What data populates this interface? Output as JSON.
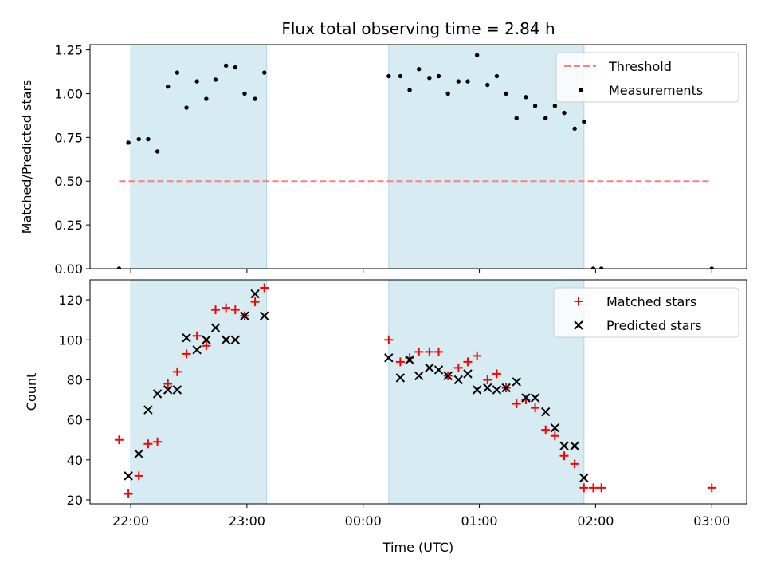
{
  "chart_data": {
    "title": "Flux total observing time = 2.84 h",
    "xlabel": "Time (UTC)",
    "x_ticks": [
      "22:00",
      "23:00",
      "00:00",
      "01:00",
      "02:00",
      "03:00"
    ],
    "x_tick_hours": [
      22,
      23,
      24,
      25,
      26,
      27
    ],
    "xlim_hours": [
      21.65,
      27.3
    ],
    "shaded_intervals_hours": [
      [
        22.0,
        23.17
      ],
      [
        24.22,
        25.9
      ]
    ],
    "shade_color": "#add8e6",
    "panels": [
      {
        "type": "scatter",
        "ylabel": "Matched/Predicted stars",
        "ylim": [
          0,
          1.28
        ],
        "y_ticks": [
          "0.00",
          "0.25",
          "0.50",
          "0.75",
          "1.00",
          "1.25"
        ],
        "y_tick_values": [
          0,
          0.25,
          0.5,
          0.75,
          1.0,
          1.25
        ],
        "legend_position": "top-right",
        "series": [
          {
            "name": "Threshold",
            "kind": "dashed-line",
            "color": "#ff7f7f",
            "x": [
              21.9,
              27.0
            ],
            "y": [
              0.5,
              0.5
            ]
          },
          {
            "name": "Measurements",
            "kind": "dot",
            "color": "#000000",
            "x": [
              21.9,
              21.98,
              22.07,
              22.15,
              22.23,
              22.32,
              22.4,
              22.48,
              22.57,
              22.65,
              22.73,
              22.82,
              22.9,
              22.98,
              23.07,
              23.15,
              24.22,
              24.32,
              24.4,
              24.48,
              24.57,
              24.65,
              24.73,
              24.82,
              24.9,
              24.98,
              25.07,
              25.15,
              25.23,
              25.32,
              25.4,
              25.48,
              25.57,
              25.65,
              25.73,
              25.82,
              25.9,
              25.98,
              26.05,
              27.0
            ],
            "y": [
              0.0,
              0.72,
              0.74,
              0.74,
              0.67,
              1.04,
              1.12,
              0.92,
              1.07,
              0.97,
              1.08,
              1.16,
              1.15,
              1.0,
              0.97,
              1.12,
              1.1,
              1.1,
              1.02,
              1.14,
              1.09,
              1.1,
              1.0,
              1.07,
              1.07,
              1.22,
              1.05,
              1.1,
              1.0,
              0.86,
              0.98,
              0.93,
              0.86,
              0.93,
              0.89,
              0.8,
              0.84,
              0.0,
              0.0,
              0.0
            ]
          }
        ]
      },
      {
        "type": "scatter",
        "ylabel": "Count",
        "ylim": [
          18,
          130
        ],
        "y_ticks": [
          "20",
          "40",
          "60",
          "80",
          "100",
          "120"
        ],
        "y_tick_values": [
          20,
          40,
          60,
          80,
          100,
          120
        ],
        "legend_position": "top-right",
        "series": [
          {
            "name": "Matched stars",
            "kind": "plus",
            "color": "#ff0000",
            "x": [
              21.9,
              21.98,
              22.07,
              22.15,
              22.23,
              22.32,
              22.4,
              22.48,
              22.57,
              22.65,
              22.73,
              22.82,
              22.9,
              22.98,
              23.07,
              23.15,
              24.22,
              24.32,
              24.4,
              24.48,
              24.57,
              24.65,
              24.73,
              24.82,
              24.9,
              24.98,
              25.07,
              25.15,
              25.23,
              25.32,
              25.4,
              25.48,
              25.57,
              25.65,
              25.73,
              25.82,
              25.9,
              25.98,
              26.05,
              27.0
            ],
            "y": [
              50,
              23,
              32,
              48,
              49,
              78,
              84,
              93,
              102,
              97,
              115,
              116,
              115,
              112,
              119,
              126,
              100,
              89,
              91,
              94,
              94,
              94,
              82,
              86,
              89,
              92,
              80,
              83,
              76,
              68,
              70,
              66,
              55,
              52,
              42,
              38,
              26,
              26,
              26,
              26
            ]
          },
          {
            "name": "Predicted stars",
            "kind": "cross",
            "color": "#000000",
            "x": [
              21.98,
              22.07,
              22.15,
              22.23,
              22.32,
              22.4,
              22.48,
              22.57,
              22.65,
              22.73,
              22.82,
              22.9,
              22.98,
              23.07,
              23.15,
              24.22,
              24.32,
              24.4,
              24.48,
              24.57,
              24.65,
              24.73,
              24.82,
              24.9,
              24.98,
              25.07,
              25.15,
              25.23,
              25.32,
              25.4,
              25.48,
              25.57,
              25.65,
              25.73,
              25.82,
              25.9
            ],
            "y": [
              32,
              43,
              65,
              73,
              75,
              75,
              101,
              95,
              100,
              106,
              100,
              100,
              112,
              123,
              112,
              91,
              81,
              90,
              82,
              86,
              85,
              82,
              80,
              83,
              75,
              76,
              75,
              76,
              79,
              71,
              71,
              64,
              56,
              47,
              47,
              31
            ]
          }
        ]
      }
    ]
  }
}
